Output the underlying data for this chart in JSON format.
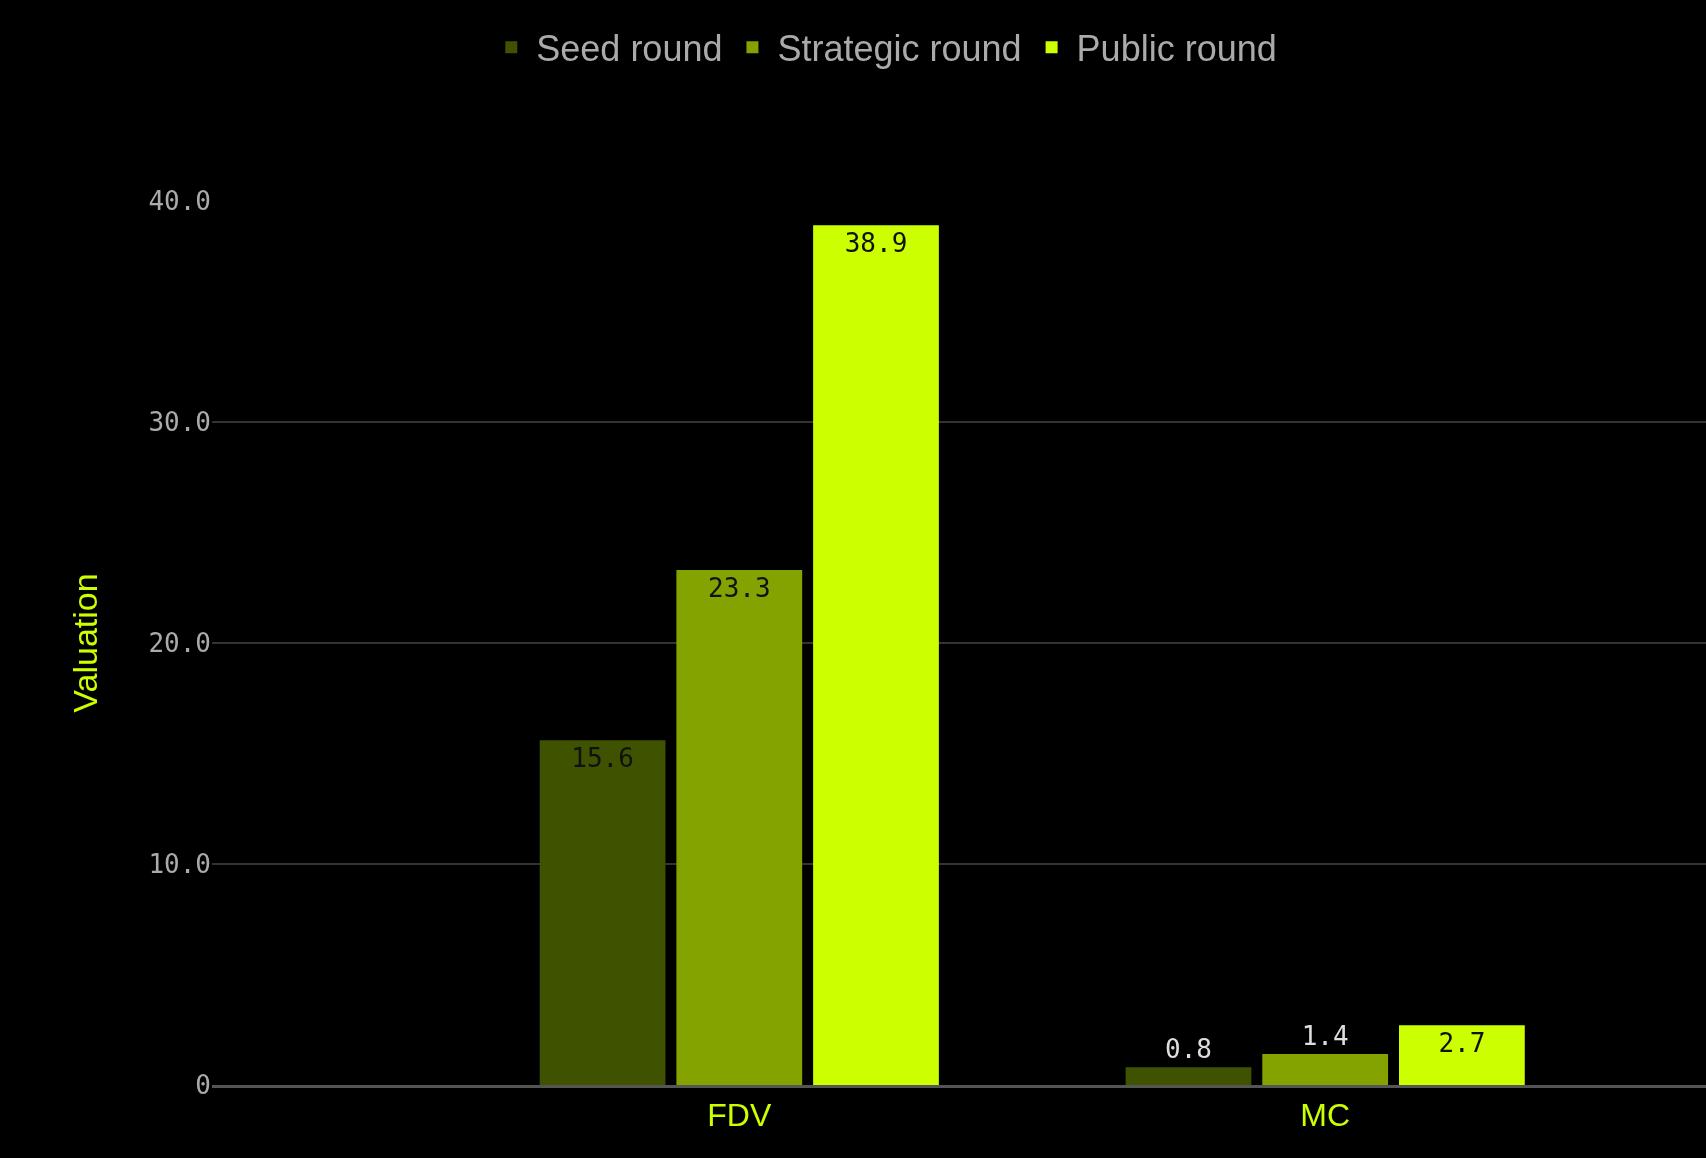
{
  "chart_data": {
    "type": "bar",
    "ylabel": "Valuation",
    "categories": [
      "FDV",
      "MC"
    ],
    "series": [
      {
        "name": "Seed round",
        "color": "#3f5200",
        "values": [
          15.6,
          0.8
        ]
      },
      {
        "name": "Strategic round",
        "color": "#84a300",
        "values": [
          23.3,
          1.4
        ]
      },
      {
        "name": "Public round",
        "color": "#ccff00",
        "values": [
          38.9,
          2.7
        ]
      }
    ],
    "ylim": [
      0,
      40
    ],
    "yticks": [
      0,
      {
        "value": 10,
        "label": "10.0"
      },
      {
        "value": 20,
        "label": "20.0"
      },
      {
        "value": 30,
        "label": "30.0"
      },
      {
        "value": 40,
        "label": "40.0"
      }
    ],
    "grid": "y",
    "legend": "top",
    "data_labels": true
  }
}
